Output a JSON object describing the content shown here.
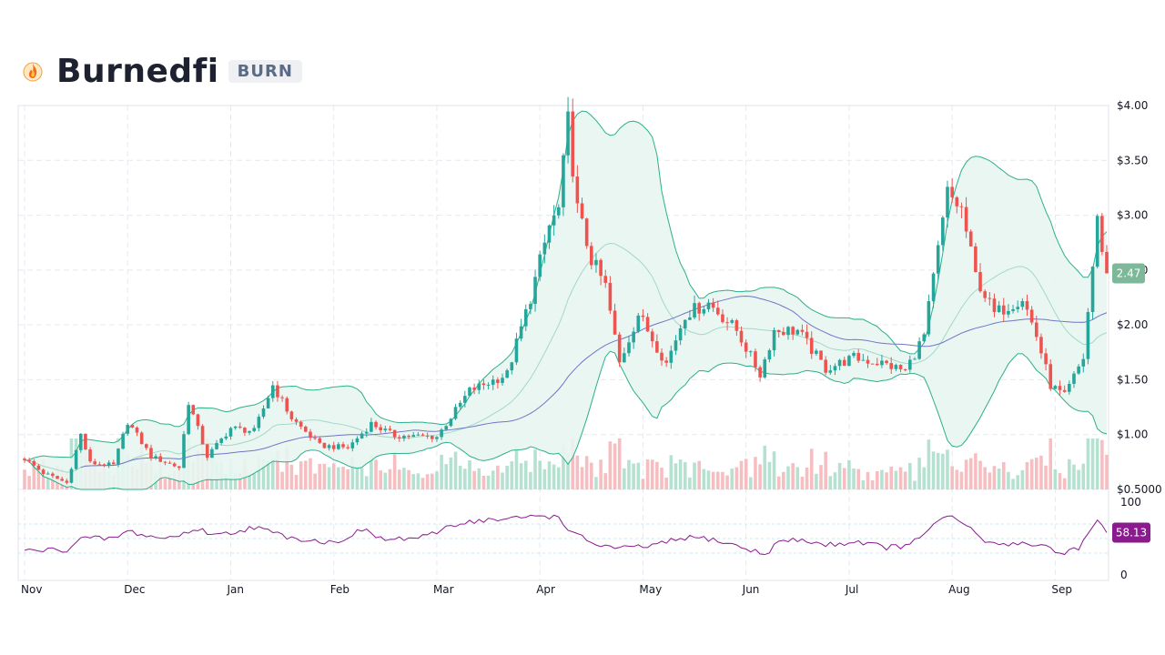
{
  "header": {
    "name": "Burnedfi",
    "ticker": "BURN",
    "logo_icon": "flame-coin-icon"
  },
  "colors": {
    "up": "#26a69a",
    "down": "#ef5350",
    "band_line": "#2bb08a",
    "band_fill": "#e8f5f1",
    "ma_long": "#7075c6",
    "ma_short": "#a3d9c4",
    "rsi_line": "#8a1a8e",
    "rsi_tag": "#8a1a8e",
    "price_tag": "#7db89a",
    "grid": "#e6e9ef",
    "axis_text": "#131722"
  },
  "chart_data": {
    "type": "candlestick",
    "price_axis": {
      "ticks": [
        "$4.00",
        "$3.50",
        "$3.00",
        "$2.50",
        "$2.00",
        "$1.50",
        "$1.00",
        "$0.5000"
      ],
      "tick_values": [
        4.0,
        3.5,
        3.0,
        2.5,
        2.0,
        1.5,
        1.0,
        0.5
      ],
      "range": [
        0.5,
        4.0
      ],
      "last_price_label": "2.47",
      "last_price": 2.47
    },
    "rsi_axis": {
      "ticks": [
        "100",
        "0"
      ],
      "tick_values": [
        100,
        0
      ],
      "range": [
        0,
        100
      ],
      "last_value_label": "58.13",
      "last_value": 58.13,
      "guide_levels": [
        70,
        50,
        30
      ]
    },
    "x_axis": {
      "labels": [
        "Nov",
        "Dec",
        "Jan",
        "Feb",
        "Mar",
        "Apr",
        "May",
        "Jun",
        "Jul",
        "Aug",
        "Sep"
      ]
    },
    "grid": true,
    "price_anchors": [
      [
        0,
        0.78
      ],
      [
        4,
        0.65
      ],
      [
        9,
        0.56
      ],
      [
        12,
        1.0
      ],
      [
        14,
        0.74
      ],
      [
        19,
        0.72
      ],
      [
        22,
        1.12
      ],
      [
        27,
        0.8
      ],
      [
        33,
        0.7
      ],
      [
        35,
        1.3
      ],
      [
        39,
        0.8
      ],
      [
        44,
        1.06
      ],
      [
        49,
        1.03
      ],
      [
        53,
        1.45
      ],
      [
        57,
        1.15
      ],
      [
        63,
        0.9
      ],
      [
        69,
        0.88
      ],
      [
        74,
        1.1
      ],
      [
        79,
        0.99
      ],
      [
        88,
        0.98
      ],
      [
        95,
        1.4
      ],
      [
        103,
        1.55
      ],
      [
        108,
        2.25
      ],
      [
        112,
        2.9
      ],
      [
        114,
        3.05
      ],
      [
        116,
        3.85
      ],
      [
        118,
        3.05
      ],
      [
        121,
        2.6
      ],
      [
        124,
        2.35
      ],
      [
        127,
        1.65
      ],
      [
        131,
        2.1
      ],
      [
        137,
        1.65
      ],
      [
        141,
        2.1
      ],
      [
        146,
        2.2
      ],
      [
        152,
        1.95
      ],
      [
        157,
        1.55
      ],
      [
        160,
        1.95
      ],
      [
        165,
        1.95
      ],
      [
        171,
        1.6
      ],
      [
        177,
        1.7
      ],
      [
        183,
        1.65
      ],
      [
        188,
        1.58
      ],
      [
        192,
        1.9
      ],
      [
        197,
        3.2
      ],
      [
        200,
        3.05
      ],
      [
        203,
        2.45
      ],
      [
        207,
        2.1
      ],
      [
        213,
        2.25
      ],
      [
        216,
        1.9
      ],
      [
        219,
        1.45
      ],
      [
        222,
        1.35
      ],
      [
        226,
        1.7
      ],
      [
        229,
        2.95
      ],
      [
        231,
        2.47
      ]
    ],
    "rsi_anchors": [
      [
        0,
        33
      ],
      [
        9,
        35
      ],
      [
        12,
        50
      ],
      [
        19,
        50
      ],
      [
        22,
        60
      ],
      [
        29,
        50
      ],
      [
        33,
        54
      ],
      [
        36,
        63
      ],
      [
        42,
        55
      ],
      [
        49,
        66
      ],
      [
        55,
        54
      ],
      [
        61,
        48
      ],
      [
        66,
        44
      ],
      [
        72,
        62
      ],
      [
        77,
        48
      ],
      [
        86,
        52
      ],
      [
        91,
        69
      ],
      [
        97,
        75
      ],
      [
        103,
        76
      ],
      [
        110,
        82
      ],
      [
        114,
        79
      ],
      [
        117,
        57
      ],
      [
        122,
        42
      ],
      [
        127,
        36
      ],
      [
        134,
        40
      ],
      [
        141,
        51
      ],
      [
        146,
        50
      ],
      [
        152,
        40
      ],
      [
        158,
        28
      ],
      [
        161,
        46
      ],
      [
        166,
        48
      ],
      [
        171,
        41
      ],
      [
        178,
        46
      ],
      [
        184,
        38
      ],
      [
        189,
        40
      ],
      [
        193,
        64
      ],
      [
        197,
        80
      ],
      [
        200,
        73
      ],
      [
        206,
        42
      ],
      [
        212,
        44
      ],
      [
        218,
        40
      ],
      [
        221,
        29
      ],
      [
        225,
        38
      ],
      [
        229,
        72
      ],
      [
        231,
        58.13
      ]
    ]
  }
}
